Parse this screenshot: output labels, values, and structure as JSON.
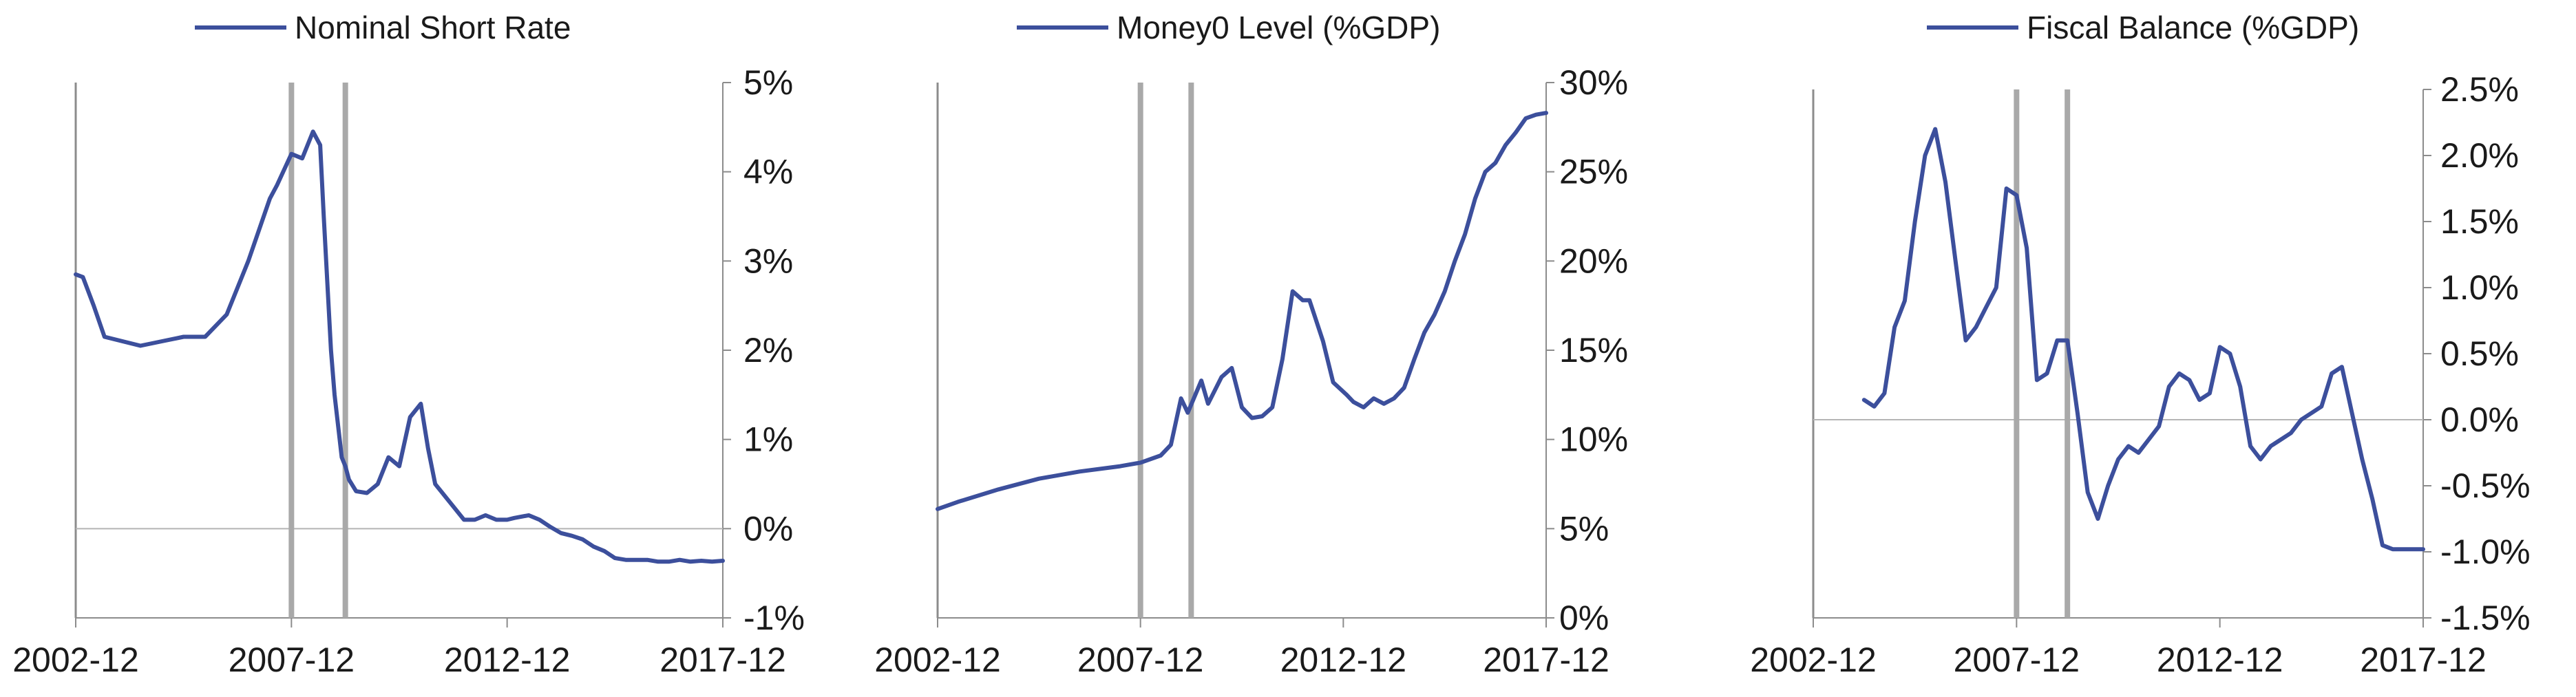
{
  "colors": {
    "series": "#3c4f9c",
    "event_line": "#a9a9a9",
    "axis": "#8c8c8c"
  },
  "x_ticks": [
    "2002-12",
    "2007-12",
    "2012-12",
    "2017-12"
  ],
  "event_lines": [
    "2007-12",
    "2009-03"
  ],
  "chart_data": [
    {
      "type": "line",
      "title": "",
      "legend": "Nominal Short Rate",
      "x_range": [
        "2002-12",
        "2017-12"
      ],
      "ylim": [
        -1,
        5
      ],
      "y_ticks": [
        5,
        4,
        3,
        2,
        1,
        0,
        -1
      ],
      "y_tick_labels": [
        "5%",
        "4%",
        "3%",
        "2%",
        "1%",
        "0%",
        "-1%"
      ],
      "series": [
        {
          "name": "Nominal Short Rate",
          "x": [
            "2002-12",
            "2003-02",
            "2003-05",
            "2003-08",
            "2004-01",
            "2004-06",
            "2004-12",
            "2005-06",
            "2005-12",
            "2006-06",
            "2006-12",
            "2007-06",
            "2007-08",
            "2007-12",
            "2008-03",
            "2008-06",
            "2008-08",
            "2008-09",
            "2008-11",
            "2008-12",
            "2009-02",
            "2009-03",
            "2009-04",
            "2009-06",
            "2009-09",
            "2009-12",
            "2010-03",
            "2010-06",
            "2010-09",
            "2010-12",
            "2011-02",
            "2011-04",
            "2011-06",
            "2011-07",
            "2011-09",
            "2011-12",
            "2012-03",
            "2012-06",
            "2012-09",
            "2012-12",
            "2013-02",
            "2013-06",
            "2013-09",
            "2013-12",
            "2014-03",
            "2014-06",
            "2014-09",
            "2014-12",
            "2015-03",
            "2015-06",
            "2015-09",
            "2015-12",
            "2016-03",
            "2016-06",
            "2016-09",
            "2016-12",
            "2017-03",
            "2017-06",
            "2017-09",
            "2017-12"
          ],
          "y": [
            2.85,
            2.82,
            2.5,
            2.15,
            2.1,
            2.05,
            2.1,
            2.15,
            2.15,
            2.4,
            3.0,
            3.7,
            3.85,
            4.2,
            4.15,
            4.45,
            4.3,
            3.5,
            2.0,
            1.5,
            0.8,
            0.7,
            0.55,
            0.42,
            0.4,
            0.5,
            0.8,
            0.7,
            1.25,
            1.4,
            0.9,
            0.5,
            0.4,
            0.35,
            0.25,
            0.1,
            0.1,
            0.15,
            0.1,
            0.1,
            0.12,
            0.15,
            0.1,
            0.02,
            -0.05,
            -0.08,
            -0.12,
            -0.2,
            -0.25,
            -0.33,
            -0.35,
            -0.35,
            -0.35,
            -0.37,
            -0.37,
            -0.35,
            -0.37,
            -0.36,
            -0.37,
            -0.36
          ]
        }
      ]
    },
    {
      "type": "line",
      "title": "",
      "legend": "Money0 Level (%GDP)",
      "x_range": [
        "2002-12",
        "2017-12"
      ],
      "ylim": [
        0,
        30
      ],
      "y_ticks": [
        30,
        25,
        20,
        15,
        10,
        5,
        0
      ],
      "y_tick_labels": [
        "30%",
        "25%",
        "20%",
        "15%",
        "10%",
        "5%",
        "0%"
      ],
      "series": [
        {
          "name": "Money0 Level (%GDP)",
          "x": [
            "2002-12",
            "2003-06",
            "2004-06",
            "2005-06",
            "2006-06",
            "2007-06",
            "2007-12",
            "2008-06",
            "2008-09",
            "2008-12",
            "2009-02",
            "2009-06",
            "2009-08",
            "2009-12",
            "2010-03",
            "2010-06",
            "2010-09",
            "2010-12",
            "2011-03",
            "2011-06",
            "2011-09",
            "2011-12",
            "2012-02",
            "2012-06",
            "2012-09",
            "2013-01",
            "2013-03",
            "2013-06",
            "2013-09",
            "2013-12",
            "2014-03",
            "2014-06",
            "2014-09",
            "2014-12",
            "2015-03",
            "2015-06",
            "2015-09",
            "2015-12",
            "2016-03",
            "2016-06",
            "2016-09",
            "2016-12",
            "2017-03",
            "2017-06",
            "2017-09",
            "2017-12"
          ],
          "y": [
            6.1,
            6.5,
            7.2,
            7.8,
            8.2,
            8.5,
            8.7,
            9.1,
            9.7,
            12.3,
            11.5,
            13.3,
            12.0,
            13.5,
            14.0,
            11.8,
            11.2,
            11.3,
            11.8,
            14.5,
            18.3,
            17.8,
            17.8,
            15.5,
            13.2,
            12.5,
            12.1,
            11.8,
            12.3,
            12.0,
            12.3,
            12.9,
            14.5,
            16.0,
            17.0,
            18.3,
            20.0,
            21.5,
            23.5,
            25.0,
            25.5,
            26.5,
            27.2,
            28.0,
            28.2,
            28.3
          ]
        }
      ]
    },
    {
      "type": "line",
      "title": "",
      "legend": "Fiscal Balance (%GDP)",
      "x_range": [
        "2002-12",
        "2017-12"
      ],
      "ylim": [
        -1.5,
        2.5
      ],
      "y_ticks": [
        2.5,
        2.0,
        1.5,
        1.0,
        0.5,
        0.0,
        -0.5,
        -1.0,
        -1.5
      ],
      "y_tick_labels": [
        "2.5%",
        "2.0%",
        "1.5%",
        "1.0%",
        "0.5%",
        "0.0%",
        "-0.5%",
        "-1.0%",
        "-1.5%"
      ],
      "series": [
        {
          "name": "Fiscal Balance (%GDP)",
          "x": [
            "2004-03",
            "2004-06",
            "2004-09",
            "2004-12",
            "2005-03",
            "2005-06",
            "2005-09",
            "2005-12",
            "2006-03",
            "2006-06",
            "2006-09",
            "2006-12",
            "2007-03",
            "2007-06",
            "2007-09",
            "2007-12",
            "2008-03",
            "2008-06",
            "2008-09",
            "2008-12",
            "2009-03",
            "2009-06",
            "2009-09",
            "2009-12",
            "2010-03",
            "2010-06",
            "2010-09",
            "2010-12",
            "2011-03",
            "2011-06",
            "2011-09",
            "2011-12",
            "2012-03",
            "2012-06",
            "2012-09",
            "2012-12",
            "2013-03",
            "2013-06",
            "2013-09",
            "2013-12",
            "2014-03",
            "2014-06",
            "2014-09",
            "2014-12",
            "2015-03",
            "2015-06",
            "2015-09",
            "2015-12",
            "2016-03",
            "2016-06",
            "2016-09",
            "2016-12",
            "2017-03",
            "2017-06",
            "2017-09",
            "2017-12"
          ],
          "y": [
            0.15,
            0.1,
            0.2,
            0.7,
            0.9,
            1.5,
            2.0,
            2.2,
            1.8,
            1.2,
            0.6,
            0.7,
            0.85,
            1.0,
            1.75,
            1.7,
            1.3,
            0.3,
            0.35,
            0.6,
            0.6,
            0.05,
            -0.55,
            -0.75,
            -0.5,
            -0.3,
            -0.2,
            -0.25,
            -0.15,
            -0.05,
            0.25,
            0.35,
            0.3,
            0.15,
            0.2,
            0.55,
            0.5,
            0.25,
            -0.2,
            -0.3,
            -0.2,
            -0.15,
            -0.1,
            0.0,
            0.05,
            0.1,
            0.35,
            0.4,
            0.05,
            -0.3,
            -0.6,
            -0.95,
            -0.98,
            -0.98,
            -0.98,
            -0.98
          ]
        }
      ]
    }
  ]
}
